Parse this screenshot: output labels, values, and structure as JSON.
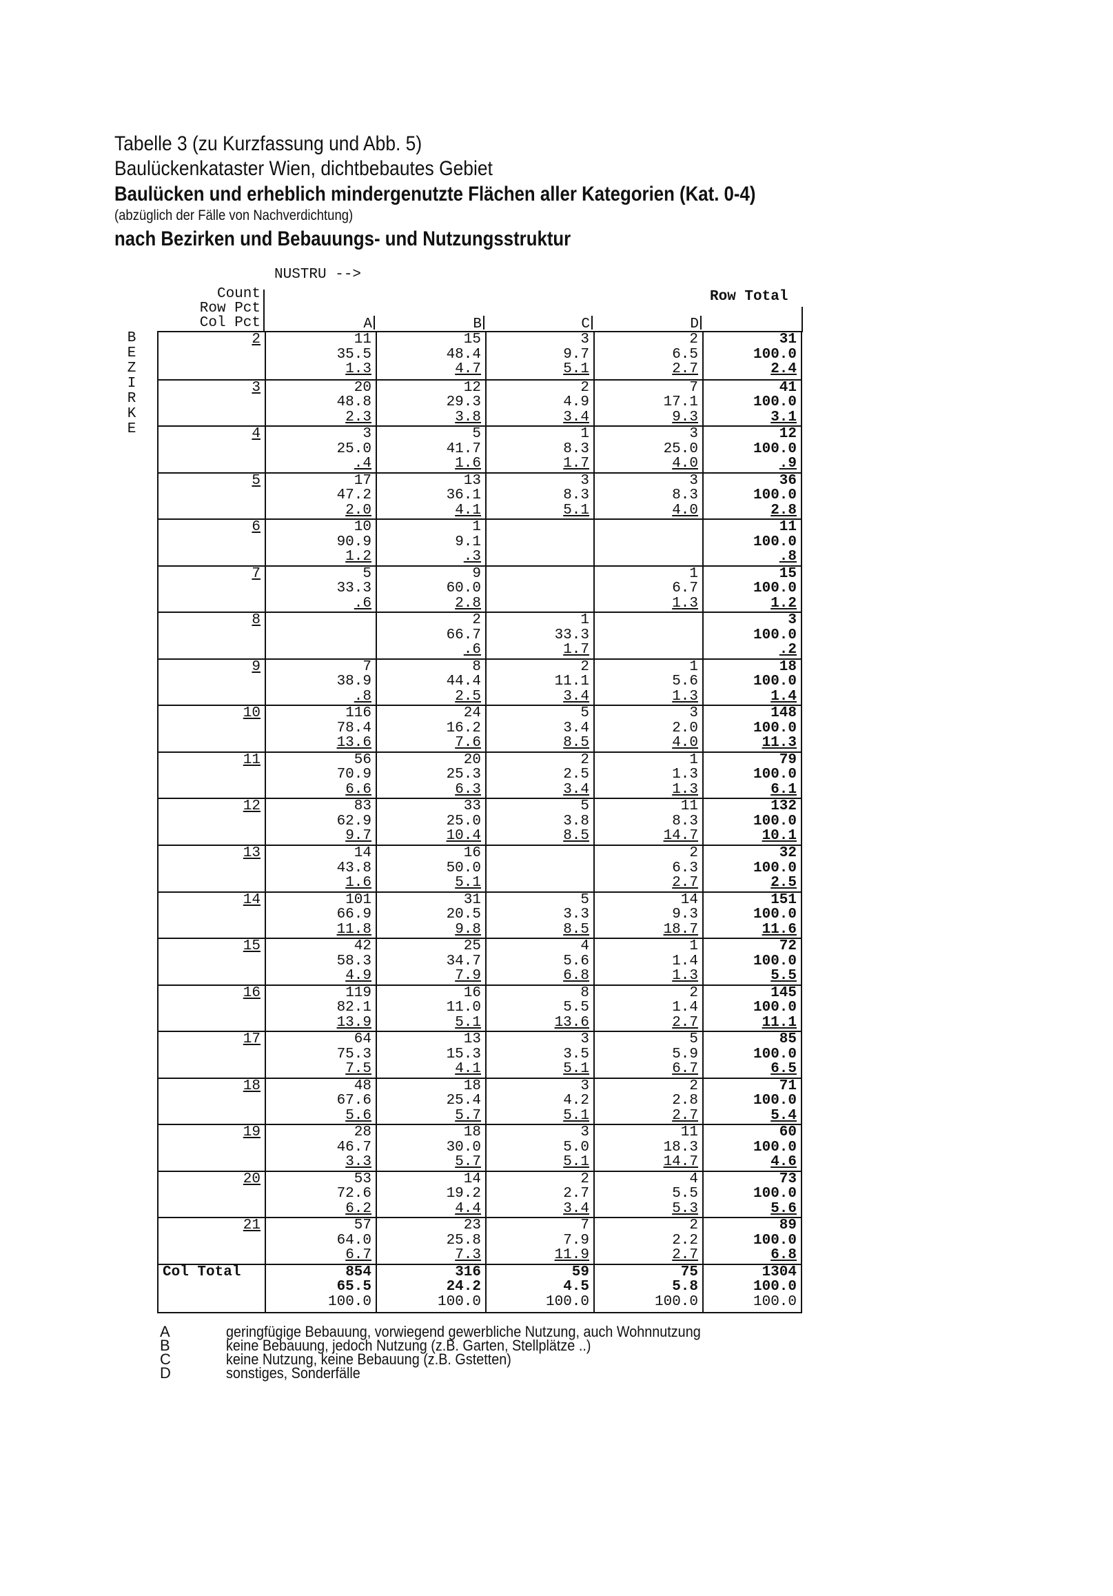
{
  "header": {
    "line1": "Tabelle 3 (zu Kurzfassung und Abb. 5)",
    "line2": "Baulückenkataster Wien, dichtbebautes Gebiet",
    "line3": "Baulücken und erheblich mindergenutzte Flächen aller Kategorien (Kat. 0-4)",
    "line4": "(abzüglich der Fälle von Nachverdichtung)",
    "line5": "nach Bezirken und Bebauungs- und Nutzungsstruktur"
  },
  "table": {
    "column_variable": "NUSTRU -->",
    "row_variable_letters": [
      "B",
      "E",
      "Z",
      "I",
      "R",
      "K",
      "E"
    ],
    "stub_labels": [
      "Count",
      "Row Pct",
      "Col Pct"
    ],
    "columns": [
      "A",
      "B",
      "C",
      "D"
    ],
    "row_total_label": "Row Total",
    "col_total_label": "Col Total",
    "rows": [
      {
        "label": "2",
        "cells": [
          [
            "11",
            "35.5",
            "1.3"
          ],
          [
            "15",
            "48.4",
            "4.7"
          ],
          [
            "3",
            "9.7",
            "5.1"
          ],
          [
            "2",
            "6.5",
            "2.7"
          ]
        ],
        "total": [
          "31",
          "100.0",
          "2.4"
        ]
      },
      {
        "label": "3",
        "cells": [
          [
            "20",
            "48.8",
            "2.3"
          ],
          [
            "12",
            "29.3",
            "3.8"
          ],
          [
            "2",
            "4.9",
            "3.4"
          ],
          [
            "7",
            "17.1",
            "9.3"
          ]
        ],
        "total": [
          "41",
          "100.0",
          "3.1"
        ]
      },
      {
        "label": "4",
        "cells": [
          [
            "3",
            "25.0",
            ".4"
          ],
          [
            "5",
            "41.7",
            "1.6"
          ],
          [
            "1",
            "8.3",
            "1.7"
          ],
          [
            "3",
            "25.0",
            "4.0"
          ]
        ],
        "total": [
          "12",
          "100.0",
          ".9"
        ]
      },
      {
        "label": "5",
        "cells": [
          [
            "17",
            "47.2",
            "2.0"
          ],
          [
            "13",
            "36.1",
            "4.1"
          ],
          [
            "3",
            "8.3",
            "5.1"
          ],
          [
            "3",
            "8.3",
            "4.0"
          ]
        ],
        "total": [
          "36",
          "100.0",
          "2.8"
        ]
      },
      {
        "label": "6",
        "cells": [
          [
            "10",
            "90.9",
            "1.2"
          ],
          [
            "1",
            "9.1",
            ".3"
          ],
          null,
          null
        ],
        "total": [
          "11",
          "100.0",
          ".8"
        ]
      },
      {
        "label": "7",
        "cells": [
          [
            "5",
            "33.3",
            ".6"
          ],
          [
            "9",
            "60.0",
            "2.8"
          ],
          null,
          [
            "1",
            "6.7",
            "1.3"
          ]
        ],
        "total": [
          "15",
          "100.0",
          "1.2"
        ]
      },
      {
        "label": "8",
        "cells": [
          null,
          [
            "2",
            "66.7",
            ".6"
          ],
          [
            "1",
            "33.3",
            "1.7"
          ],
          null
        ],
        "total": [
          "3",
          "100.0",
          ".2"
        ]
      },
      {
        "label": "9",
        "cells": [
          [
            "7",
            "38.9",
            ".8"
          ],
          [
            "8",
            "44.4",
            "2.5"
          ],
          [
            "2",
            "11.1",
            "3.4"
          ],
          [
            "1",
            "5.6",
            "1.3"
          ]
        ],
        "total": [
          "18",
          "100.0",
          "1.4"
        ]
      },
      {
        "label": "10",
        "cells": [
          [
            "116",
            "78.4",
            "13.6"
          ],
          [
            "24",
            "16.2",
            "7.6"
          ],
          [
            "5",
            "3.4",
            "8.5"
          ],
          [
            "3",
            "2.0",
            "4.0"
          ]
        ],
        "total": [
          "148",
          "100.0",
          "11.3"
        ]
      },
      {
        "label": "11",
        "cells": [
          [
            "56",
            "70.9",
            "6.6"
          ],
          [
            "20",
            "25.3",
            "6.3"
          ],
          [
            "2",
            "2.5",
            "3.4"
          ],
          [
            "1",
            "1.3",
            "1.3"
          ]
        ],
        "total": [
          "79",
          "100.0",
          "6.1"
        ]
      },
      {
        "label": "12",
        "cells": [
          [
            "83",
            "62.9",
            "9.7"
          ],
          [
            "33",
            "25.0",
            "10.4"
          ],
          [
            "5",
            "3.8",
            "8.5"
          ],
          [
            "11",
            "8.3",
            "14.7"
          ]
        ],
        "total": [
          "132",
          "100.0",
          "10.1"
        ]
      },
      {
        "label": "13",
        "cells": [
          [
            "14",
            "43.8",
            "1.6"
          ],
          [
            "16",
            "50.0",
            "5.1"
          ],
          null,
          [
            "2",
            "6.3",
            "2.7"
          ]
        ],
        "total": [
          "32",
          "100.0",
          "2.5"
        ]
      },
      {
        "label": "14",
        "cells": [
          [
            "101",
            "66.9",
            "11.8"
          ],
          [
            "31",
            "20.5",
            "9.8"
          ],
          [
            "5",
            "3.3",
            "8.5"
          ],
          [
            "14",
            "9.3",
            "18.7"
          ]
        ],
        "total": [
          "151",
          "100.0",
          "11.6"
        ]
      },
      {
        "label": "15",
        "cells": [
          [
            "42",
            "58.3",
            "4.9"
          ],
          [
            "25",
            "34.7",
            "7.9"
          ],
          [
            "4",
            "5.6",
            "6.8"
          ],
          [
            "1",
            "1.4",
            "1.3"
          ]
        ],
        "total": [
          "72",
          "100.0",
          "5.5"
        ]
      },
      {
        "label": "16",
        "cells": [
          [
            "119",
            "82.1",
            "13.9"
          ],
          [
            "16",
            "11.0",
            "5.1"
          ],
          [
            "8",
            "5.5",
            "13.6"
          ],
          [
            "2",
            "1.4",
            "2.7"
          ]
        ],
        "total": [
          "145",
          "100.0",
          "11.1"
        ]
      },
      {
        "label": "17",
        "cells": [
          [
            "64",
            "75.3",
            "7.5"
          ],
          [
            "13",
            "15.3",
            "4.1"
          ],
          [
            "3",
            "3.5",
            "5.1"
          ],
          [
            "5",
            "5.9",
            "6.7"
          ]
        ],
        "total": [
          "85",
          "100.0",
          "6.5"
        ]
      },
      {
        "label": "18",
        "cells": [
          [
            "48",
            "67.6",
            "5.6"
          ],
          [
            "18",
            "25.4",
            "5.7"
          ],
          [
            "3",
            "4.2",
            "5.1"
          ],
          [
            "2",
            "2.8",
            "2.7"
          ]
        ],
        "total": [
          "71",
          "100.0",
          "5.4"
        ]
      },
      {
        "label": "19",
        "cells": [
          [
            "28",
            "46.7",
            "3.3"
          ],
          [
            "18",
            "30.0",
            "5.7"
          ],
          [
            "3",
            "5.0",
            "5.1"
          ],
          [
            "11",
            "18.3",
            "14.7"
          ]
        ],
        "total": [
          "60",
          "100.0",
          "4.6"
        ]
      },
      {
        "label": "20",
        "cells": [
          [
            "53",
            "72.6",
            "6.2"
          ],
          [
            "14",
            "19.2",
            "4.4"
          ],
          [
            "2",
            "2.7",
            "3.4"
          ],
          [
            "4",
            "5.5",
            "5.3"
          ]
        ],
        "total": [
          "73",
          "100.0",
          "5.6"
        ]
      },
      {
        "label": "21",
        "cells": [
          [
            "57",
            "64.0",
            "6.7"
          ],
          [
            "23",
            "25.8",
            "7.3"
          ],
          [
            "7",
            "7.9",
            "11.9"
          ],
          [
            "2",
            "2.2",
            "2.7"
          ]
        ],
        "total": [
          "89",
          "100.0",
          "6.8"
        ]
      }
    ],
    "col_totals": {
      "cells": [
        [
          "854",
          "65.5",
          "100.0"
        ],
        [
          "316",
          "24.2",
          "100.0"
        ],
        [
          "59",
          "4.5",
          "100.0"
        ],
        [
          "75",
          "5.8",
          "100.0"
        ]
      ],
      "total": [
        "1304",
        "100.0",
        "100.0"
      ]
    }
  },
  "legend": [
    {
      "key": "A",
      "text": "geringfügige Bebauung, vorwiegend gewerbliche Nutzung, auch Wohnnutzung"
    },
    {
      "key": "B",
      "text": "keine Bebauung, jedoch Nutzung (z.B. Garten, Stellplätze ..)"
    },
    {
      "key": "C",
      "text": "keine Nutzung, keine Bebauung (z.B. Gstetten)"
    },
    {
      "key": "D",
      "text": "sonstiges, Sonderfälle"
    }
  ]
}
